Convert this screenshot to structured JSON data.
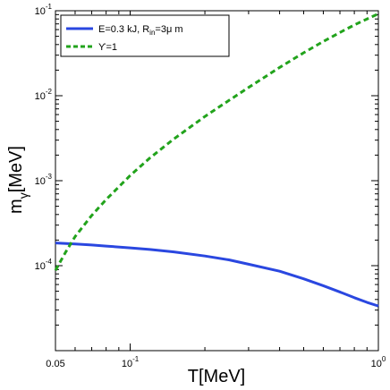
{
  "chart_data": {
    "type": "line",
    "xscale": "log",
    "yscale": "log",
    "xlim": [
      0.05,
      1
    ],
    "ylim": [
      1e-05,
      0.1
    ],
    "xlabel": "T[MeV]",
    "ylabel": {
      "main": "m",
      "sub": "γ",
      "sub2": "ᵢ",
      "tail": "[MeV]"
    },
    "grid": false,
    "legend_position": "top-left",
    "x_ticks": [
      {
        "value": 0.05,
        "label": "0.05",
        "major": false,
        "has_label": true
      },
      {
        "value": 0.1,
        "base": "10",
        "exp": "-1",
        "major": true
      },
      {
        "value": 1,
        "base": "10",
        "exp": "0",
        "major": true
      }
    ],
    "y_ticks": [
      {
        "value": 0.0001,
        "base": "10",
        "exp": "-4"
      },
      {
        "value": 0.001,
        "base": "10",
        "exp": "-3"
      },
      {
        "value": 0.01,
        "base": "10",
        "exp": "-2"
      },
      {
        "value": 0.1,
        "base": "10",
        "exp": "-1"
      }
    ],
    "series": [
      {
        "legend": {
          "pre": "E=0.3 kJ, R",
          "sub": "in",
          "post": "=3μ m"
        },
        "color": "#2a47e0",
        "style": "solid",
        "x": [
          0.05,
          0.06,
          0.07,
          0.08,
          0.1,
          0.12,
          0.15,
          0.2,
          0.25,
          0.3,
          0.4,
          0.5,
          0.6,
          0.7,
          0.8,
          0.9,
          1.0
        ],
        "y": [
          0.000185,
          0.00018,
          0.000175,
          0.00017,
          0.000162,
          0.000155,
          0.000145,
          0.00013,
          0.000117,
          0.000104,
          8.6e-05,
          7e-05,
          5.8e-05,
          4.9e-05,
          4.2e-05,
          3.7e-05,
          3.35e-05
        ]
      },
      {
        "legend": {
          "pre": "ϒ=1",
          "sub": "",
          "post": ""
        },
        "color": "#22a31c",
        "style": "dashed",
        "x": [
          0.05,
          0.055,
          0.06,
          0.07,
          0.08,
          0.1,
          0.12,
          0.15,
          0.2,
          0.25,
          0.3,
          0.4,
          0.5,
          0.6,
          0.7,
          0.8,
          0.9,
          1.0
        ],
        "y": [
          8.8e-05,
          0.000145,
          0.00022,
          0.00039,
          0.0006,
          0.00115,
          0.00185,
          0.0031,
          0.0057,
          0.0088,
          0.0125,
          0.0215,
          0.032,
          0.0435,
          0.0555,
          0.068,
          0.08,
          0.092
        ]
      }
    ]
  }
}
